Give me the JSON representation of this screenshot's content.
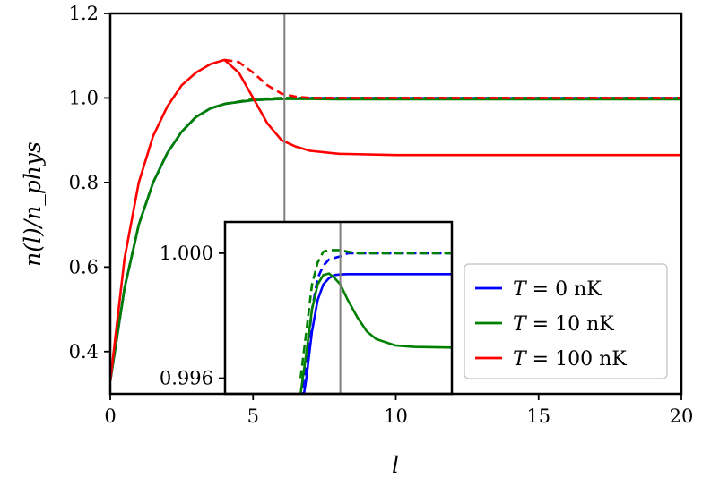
{
  "chart_data": [
    {
      "type": "line",
      "xlabel": "l",
      "ylabel": "n(l)/n_phys",
      "xlim": [
        0,
        20
      ],
      "ylim": [
        0.3,
        1.2
      ],
      "xticks": [
        0,
        5,
        10,
        15,
        20
      ],
      "yticks": [
        0.4,
        0.6,
        0.8,
        1.0,
        1.2
      ],
      "xtick_labels": [
        "0",
        "5",
        "10",
        "15",
        "20"
      ],
      "ytick_labels": [
        "0.4",
        "0.6",
        "0.8",
        "1.0",
        "1.2"
      ],
      "vline_x": 6.1,
      "grid": false,
      "legend_position": "lower-right",
      "series": [
        {
          "name": "T = 0 nK",
          "color": "#0000ff",
          "style": "solid",
          "x": [
            0,
            0.5,
            1,
            1.5,
            2,
            2.5,
            3,
            3.5,
            4,
            5,
            6,
            7,
            8,
            10,
            12,
            15,
            20
          ],
          "y": [
            0.33,
            0.55,
            0.7,
            0.8,
            0.87,
            0.92,
            0.955,
            0.975,
            0.986,
            0.995,
            0.998,
            0.9995,
            0.9995,
            0.9995,
            0.9995,
            0.9995,
            0.9995
          ]
        },
        {
          "name": "T = 0 nK (dashed)",
          "color": "#0000ff",
          "style": "dashed",
          "x": [
            0,
            0.5,
            1,
            1.5,
            2,
            2.5,
            3,
            3.5,
            4,
            5,
            6,
            7,
            8,
            10,
            12,
            15,
            20
          ],
          "y": [
            0.33,
            0.55,
            0.7,
            0.8,
            0.87,
            0.92,
            0.955,
            0.975,
            0.986,
            0.996,
            0.999,
            1.0,
            1.0,
            1.0,
            1.0,
            1.0,
            1.0
          ]
        },
        {
          "name": "T = 10 nK",
          "color": "#008000",
          "style": "solid",
          "x": [
            0,
            0.5,
            1,
            1.5,
            2,
            2.5,
            3,
            3.5,
            4,
            5,
            6,
            7,
            8,
            10,
            12,
            15,
            20
          ],
          "y": [
            0.33,
            0.55,
            0.7,
            0.8,
            0.87,
            0.92,
            0.955,
            0.975,
            0.986,
            0.995,
            0.998,
            0.9975,
            0.997,
            0.9968,
            0.9968,
            0.9968,
            0.9968
          ]
        },
        {
          "name": "T = 10 nK (dashed)",
          "color": "#008000",
          "style": "dashed",
          "x": [
            0,
            0.5,
            1,
            1.5,
            2,
            2.5,
            3,
            3.5,
            4,
            5,
            6,
            7,
            8,
            10,
            12,
            15,
            20
          ],
          "y": [
            0.33,
            0.55,
            0.7,
            0.8,
            0.87,
            0.92,
            0.955,
            0.975,
            0.986,
            0.997,
            1.0,
            1.0,
            1.0,
            1.0,
            1.0,
            1.0,
            1.0
          ]
        },
        {
          "name": "T = 100 nK",
          "color": "#ff0000",
          "style": "solid",
          "x": [
            0,
            0.5,
            1,
            1.5,
            2,
            2.5,
            3,
            3.5,
            4,
            4.5,
            5,
            5.5,
            6,
            6.5,
            7,
            8,
            10,
            12,
            15,
            20
          ],
          "y": [
            0.33,
            0.62,
            0.8,
            0.91,
            0.98,
            1.03,
            1.06,
            1.08,
            1.09,
            1.06,
            1.0,
            0.94,
            0.9,
            0.885,
            0.875,
            0.868,
            0.865,
            0.865,
            0.865,
            0.865
          ]
        },
        {
          "name": "T = 100 nK (dashed)",
          "color": "#ff0000",
          "style": "dashed",
          "x": [
            4,
            4.5,
            5,
            5.5,
            6,
            6.5,
            7,
            8,
            10,
            15,
            20
          ],
          "y": [
            1.09,
            1.085,
            1.06,
            1.03,
            1.01,
            1.003,
            1.0,
            1.0,
            1.0,
            1.0,
            1.0
          ]
        }
      ],
      "legend": [
        {
          "var": "T",
          "rest": " = 0 nK",
          "color": "#0000ff"
        },
        {
          "var": "T",
          "rest": " = 10 nK",
          "color": "#008000"
        },
        {
          "var": "T",
          "rest": " = 100 nK",
          "color": "#ff0000"
        }
      ]
    },
    {
      "type": "line",
      "role": "inset",
      "xlim": [
        0,
        12
      ],
      "ylim": [
        0.9955,
        1.001
      ],
      "yticks": [
        0.996,
        1.0
      ],
      "ytick_labels": [
        "0.996",
        "1.000"
      ],
      "vline_x": 6.1,
      "series": [
        {
          "name": "T = 0 nK",
          "color": "#0000ff",
          "style": "solid",
          "x": [
            4.0,
            4.3,
            4.6,
            4.9,
            5.2,
            5.5,
            5.8,
            6.1,
            6.5,
            7.0,
            8.0,
            10.0,
            12.0
          ],
          "y": [
            0.9948,
            0.996,
            0.9975,
            0.9985,
            0.999,
            0.9992,
            0.9993,
            0.99932,
            0.99933,
            0.99933,
            0.99933,
            0.99933,
            0.99933
          ]
        },
        {
          "name": "T = 0 nK (dashed)",
          "color": "#0000ff",
          "style": "dashed",
          "x": [
            4.0,
            4.3,
            4.6,
            4.9,
            5.2,
            5.5,
            5.8,
            6.1,
            6.5,
            7.0,
            8.0,
            10.0,
            12.0
          ],
          "y": [
            0.9953,
            0.9965,
            0.9982,
            0.9992,
            0.9996,
            0.9998,
            0.99985,
            0.9999,
            1.0,
            1.0,
            1.0,
            1.0,
            1.0
          ]
        },
        {
          "name": "T = 10 nK",
          "color": "#008000",
          "style": "solid",
          "x": [
            4.0,
            4.3,
            4.6,
            4.9,
            5.2,
            5.5,
            5.8,
            6.1,
            6.5,
            7.0,
            7.5,
            8.0,
            9.0,
            10.0,
            12.0
          ],
          "y": [
            0.9955,
            0.9968,
            0.9982,
            0.999,
            0.9993,
            0.99935,
            0.9992,
            0.999,
            0.9985,
            0.99795,
            0.9975,
            0.99725,
            0.99705,
            0.997,
            0.99698
          ]
        },
        {
          "name": "T = 10 nK (dashed)",
          "color": "#008000",
          "style": "dashed",
          "x": [
            4.0,
            4.3,
            4.6,
            4.9,
            5.2,
            5.5,
            5.8,
            6.1,
            6.5,
            7.0,
            8.0,
            10.0,
            12.0
          ],
          "y": [
            0.996,
            0.9975,
            0.999,
            0.9997,
            1.00005,
            1.0001,
            1.0001,
            1.0001,
            1.00005,
            1.0,
            1.0,
            1.0,
            1.0
          ]
        }
      ]
    }
  ]
}
